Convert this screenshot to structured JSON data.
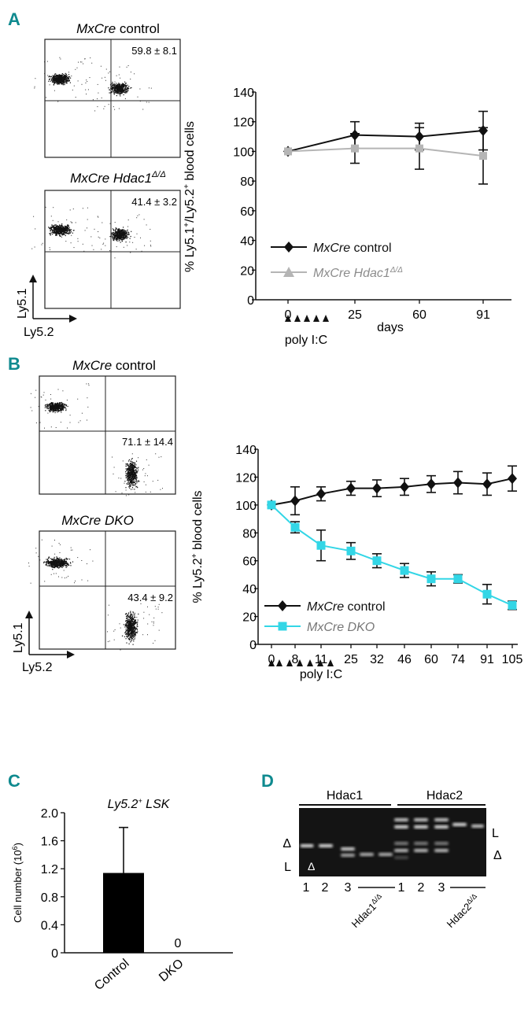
{
  "colors": {
    "panel_letter": "#0f8a8f",
    "control_series": "#111111",
    "hdac1_series": "#b3b3b3",
    "dko_series": "#33d6e6",
    "bar_fill": "#000000",
    "gel_bg": "#141414",
    "band": "#d8d8d8"
  },
  "panel_a": {
    "letter": "A",
    "flow_plots": [
      {
        "title_italic": "MxCre",
        "title_rest": " control",
        "stat": "59.8 ± 8.1"
      },
      {
        "title_italic": "MxCre Hdac1",
        "title_sup": "Δ/Δ",
        "stat": "41.4 ± 3.2"
      }
    ],
    "axis_y": "Ly5.1",
    "axis_x": "Ly5.2"
  },
  "panel_b": {
    "letter": "B",
    "flow_plots": [
      {
        "title_italic": "MxCre",
        "title_rest": " control",
        "stat": "71.1 ± 14.4"
      },
      {
        "title_italic": "MxCre DKO",
        "title_rest": "",
        "stat": "43.4 ± 9.2"
      }
    ],
    "axis_y": "Ly5.1",
    "axis_x": "Ly5.2"
  },
  "panel_c": {
    "letter": "C"
  },
  "panel_d": {
    "letter": "D",
    "group1": "Hdac1",
    "group2": "Hdac2",
    "lane_nums": [
      "1",
      "2",
      "3",
      "1",
      "2",
      "3"
    ],
    "ko_label_1": "Hdac1",
    "ko_sup_1": "Δ/Δ",
    "ko_label_2": "Hdac2",
    "ko_sup_2": "Δ/Δ",
    "mark_delta_left": "Δ",
    "mark_l_left": "L",
    "mark_delta_lane": "Δ",
    "mark_l_right": "L",
    "mark_delta_right": "Δ"
  },
  "chart_data": [
    {
      "id": "A-line",
      "type": "line",
      "ylabel_pre": "% Ly5.1",
      "ylabel_sup1": "+",
      "ylabel_mid": "/Ly5.2",
      "ylabel_sup2": "+",
      "ylabel_post": " blood cells",
      "xlabel": "days",
      "x_ticks": [
        "0",
        "25",
        "60",
        "91"
      ],
      "x": [
        0,
        25,
        60,
        91
      ],
      "ylim": [
        0,
        140
      ],
      "y_ticks": [
        "0",
        "20",
        "40",
        "60",
        "80",
        "100",
        "120",
        "140"
      ],
      "annotation": "poly I:C",
      "series": [
        {
          "name_italic": "MxCre",
          "name_rest": " control",
          "values": [
            100,
            111,
            110,
            114
          ],
          "errors": [
            0,
            9,
            9,
            13
          ],
          "marker": "diamond"
        },
        {
          "name_italic": "MxCre Hdac1",
          "name_sup": "Δ/Δ",
          "name_rest": "",
          "values": [
            100,
            102,
            102,
            97
          ],
          "errors": [
            0,
            10,
            14,
            19
          ],
          "marker": "triangle"
        }
      ]
    },
    {
      "id": "B-line",
      "type": "line",
      "ylabel_pre": "% Ly5.2",
      "ylabel_sup1": "+",
      "ylabel_post": " blood cells",
      "x_ticks": [
        "0",
        "8",
        "11",
        "25",
        "32",
        "46",
        "60",
        "74",
        "91",
        "105"
      ],
      "x": [
        0,
        8,
        11,
        25,
        32,
        46,
        60,
        74,
        91,
        105
      ],
      "ylim": [
        0,
        140
      ],
      "y_ticks": [
        "0",
        "20",
        "40",
        "60",
        "80",
        "100",
        "120",
        "140"
      ],
      "annotation": "poly I:C",
      "series": [
        {
          "name_italic": "MxCre",
          "name_rest": " control",
          "values": [
            100,
            103,
            108,
            112,
            112,
            113,
            115,
            116,
            115,
            119
          ],
          "errors": [
            0,
            10,
            5,
            5,
            6,
            6,
            6,
            8,
            8,
            9
          ],
          "marker": "diamond"
        },
        {
          "name_italic": "MxCre DKO",
          "name_rest": "",
          "values": [
            100,
            84,
            71,
            67,
            60,
            53,
            47,
            47,
            36,
            28
          ],
          "errors": [
            0,
            4,
            11,
            6,
            5,
            5,
            5,
            3,
            7,
            3
          ],
          "marker": "square"
        }
      ]
    },
    {
      "id": "C-bar",
      "type": "bar",
      "title_pre": "Ly5.2",
      "title_sup": "+",
      "title_post": " LSK",
      "ylabel_pre": "Cell number (10",
      "ylabel_sup": "6",
      "ylabel_post": ")",
      "categories": [
        "Control",
        "DKO"
      ],
      "values": [
        1.14,
        0.0
      ],
      "errors": [
        0.65,
        0
      ],
      "value_label_dko": "0",
      "ylim": [
        0,
        2.0
      ],
      "y_ticks": [
        "0",
        "0.4",
        "0.8",
        "1.2",
        "1.6",
        "2.0"
      ]
    }
  ]
}
